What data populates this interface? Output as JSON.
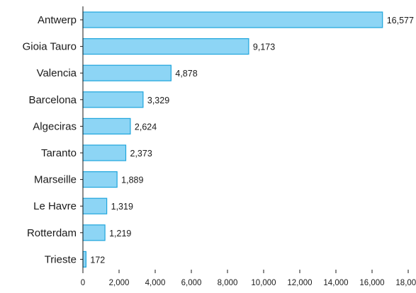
{
  "chart_data": {
    "type": "bar",
    "orientation": "horizontal",
    "title": "",
    "xlabel": "",
    "ylabel": "",
    "categories": [
      "Antwerp",
      "Gioia Tauro",
      "Valencia",
      "Barcelona",
      "Algeciras",
      "Taranto",
      "Marseille",
      "Le Havre",
      "Rotterdam",
      "Trieste"
    ],
    "values": [
      16577,
      9173,
      4878,
      3329,
      2624,
      2373,
      1889,
      1319,
      1219,
      172
    ],
    "value_labels": [
      "16,577",
      "9,173",
      "4,878",
      "3,329",
      "2,624",
      "2,373",
      "1,889",
      "1,319",
      "1,219",
      "172"
    ],
    "xlim": [
      0,
      18000
    ],
    "xticks": [
      0,
      2000,
      4000,
      6000,
      8000,
      10000,
      12000,
      14000,
      16000,
      18000
    ],
    "xtick_labels": [
      "0",
      "2,000",
      "4,000",
      "6,000",
      "8,000",
      "10,000",
      "12,000",
      "14,000",
      "16,000",
      "18,000"
    ],
    "grid": false,
    "legend": "none",
    "colors": {
      "bar_fill": "#8dd5f5",
      "bar_stroke": "#1ea5dc",
      "axis": "#1a1a1a",
      "text": "#1a1a1a"
    }
  }
}
